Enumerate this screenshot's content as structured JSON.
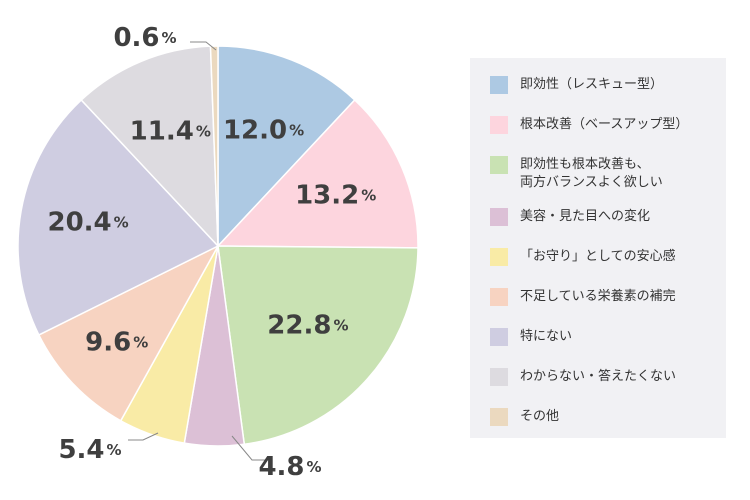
{
  "chart_data": {
    "type": "pie",
    "slices": [
      {
        "label": "即効性（レスキュー型）",
        "value": 12.0,
        "display": "12.0",
        "color": "#adc9e3"
      },
      {
        "label": "根本改善（ベースアップ型）",
        "value": 13.2,
        "display": "13.2",
        "color": "#fdd5de"
      },
      {
        "label": "即効性も根本改善も、\n両方バランスよく欲しい",
        "value": 22.8,
        "display": "22.8",
        "color": "#c9e2b3"
      },
      {
        "label": "美容・見た目への変化",
        "value": 4.8,
        "display": "4.8",
        "color": "#dcc0d6"
      },
      {
        "label": "「お守り」としての安心感",
        "value": 5.4,
        "display": "5.4",
        "color": "#f9eba6"
      },
      {
        "label": "不足している栄養素の補完",
        "value": 9.6,
        "display": "9.6",
        "color": "#f7d3c1"
      },
      {
        "label": "特にない",
        "value": 20.4,
        "display": "20.4",
        "color": "#cfcde1"
      },
      {
        "label": "わからない・答えたくない",
        "value": 11.4,
        "display": "11.4",
        "color": "#dddbe0"
      },
      {
        "label": "その他",
        "value": 0.6,
        "display": "0.6",
        "color": "#ebd9bf"
      }
    ],
    "unit": "%",
    "legend_position": "right"
  }
}
